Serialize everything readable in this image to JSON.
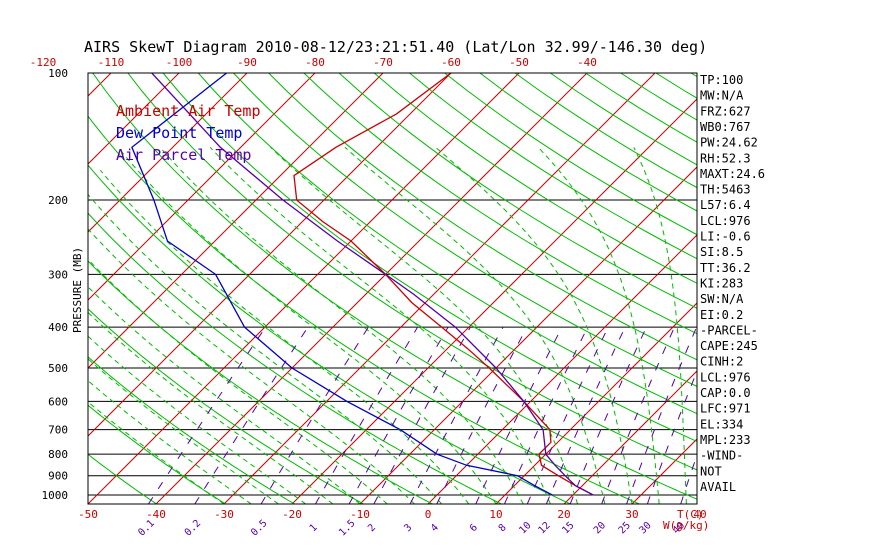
{
  "chart_data": {
    "type": "line",
    "title": "AIRS SkewT Diagram 2010-08-12/23:21:51.40 (Lat/Lon 32.99/-146.30 deg)",
    "ylabel": "PRESSURE (MB)",
    "xlabel": "T(C)",
    "mixing_ratio_label": "W(g/kg)",
    "pressure_ticks": [
      "100",
      "200",
      "300",
      "400",
      "500",
      "600",
      "700",
      "800",
      "900",
      "1000"
    ],
    "pressure_values": [
      100,
      200,
      300,
      400,
      500,
      600,
      700,
      800,
      900,
      1000
    ],
    "top_temp_ticks": [
      "-120",
      "-110",
      "-100",
      "-90",
      "-80",
      "-70",
      "-60",
      "-50",
      "-40"
    ],
    "bottom_temp_ticks": [
      "-50",
      "-40",
      "-30",
      "-20",
      "-10",
      "0",
      "10",
      "20",
      "30",
      "40"
    ],
    "mixing_ratio_ticks": [
      "0.1",
      "0.2",
      "0.5",
      "1",
      "1.5",
      "2",
      "3",
      "4",
      "6",
      "8",
      "10",
      "12",
      "15",
      "20",
      "25",
      "30",
      "40"
    ],
    "legend": [
      {
        "name": "Ambient Air Temp",
        "color": "#cc0000"
      },
      {
        "name": "Dew Point Temp",
        "color": "#0000cc"
      },
      {
        "name": "Air Parcel Temp",
        "color": "#5500aa"
      }
    ],
    "series": [
      {
        "name": "Ambient Air Temp",
        "color": "#cc0000",
        "points": [
          {
            "p": 100,
            "t": -60
          },
          {
            "p": 125,
            "t": -62
          },
          {
            "p": 150,
            "t": -66
          },
          {
            "p": 175,
            "t": -68
          },
          {
            "p": 200,
            "t": -64
          },
          {
            "p": 225,
            "t": -57
          },
          {
            "p": 250,
            "t": -50
          },
          {
            "p": 300,
            "t": -40
          },
          {
            "p": 350,
            "t": -32
          },
          {
            "p": 400,
            "t": -24
          },
          {
            "p": 450,
            "t": -17
          },
          {
            "p": 500,
            "t": -11
          },
          {
            "p": 600,
            "t": -1
          },
          {
            "p": 700,
            "t": 7
          },
          {
            "p": 750,
            "t": 9
          },
          {
            "p": 800,
            "t": 9
          },
          {
            "p": 850,
            "t": 11
          },
          {
            "p": 900,
            "t": 15
          },
          {
            "p": 950,
            "t": 19
          },
          {
            "p": 1000,
            "t": 23
          }
        ]
      },
      {
        "name": "Dew Point Temp",
        "color": "#0000cc",
        "points": [
          {
            "p": 100,
            "t": -93
          },
          {
            "p": 150,
            "t": -96
          },
          {
            "p": 200,
            "t": -85
          },
          {
            "p": 250,
            "t": -77
          },
          {
            "p": 300,
            "t": -65
          },
          {
            "p": 400,
            "t": -53
          },
          {
            "p": 500,
            "t": -40
          },
          {
            "p": 600,
            "t": -27
          },
          {
            "p": 700,
            "t": -15
          },
          {
            "p": 800,
            "t": -6
          },
          {
            "p": 850,
            "t": 0
          },
          {
            "p": 900,
            "t": 9
          },
          {
            "p": 950,
            "t": 13
          },
          {
            "p": 1000,
            "t": 17
          }
        ]
      },
      {
        "name": "Air Parcel Temp",
        "color": "#5500aa",
        "points": [
          {
            "p": 1000,
            "t": 23
          },
          {
            "p": 950,
            "t": 19
          },
          {
            "p": 900,
            "t": 16
          },
          {
            "p": 850,
            "t": 13
          },
          {
            "p": 800,
            "t": 10
          },
          {
            "p": 700,
            "t": 6
          },
          {
            "p": 600,
            "t": -1
          },
          {
            "p": 500,
            "t": -10
          },
          {
            "p": 400,
            "t": -22
          },
          {
            "p": 334,
            "t": -33
          },
          {
            "p": 300,
            "t": -40
          },
          {
            "p": 250,
            "t": -52
          },
          {
            "p": 200,
            "t": -66
          },
          {
            "p": 150,
            "t": -83
          },
          {
            "p": 100,
            "t": -104
          }
        ]
      }
    ],
    "indices": [
      "TP:100",
      "MW:N/A",
      "FRZ:627",
      "WB0:767",
      "PW:24.62",
      "RH:52.3",
      "MAXT:24.6",
      "TH:5463",
      "L57:6.4",
      "LCL:976",
      "LI:-0.6",
      "SI:8.5",
      "TT:36.2",
      "KI:283",
      "SW:N/A",
      "EI:0.2",
      "-PARCEL-",
      "CAPE:245",
      "CINH:2",
      "LCL:976",
      "CAP:0.0",
      "LFC:971",
      "EL:334",
      "MPL:233",
      "-WIND-",
      "NOT",
      "AVAIL"
    ],
    "grid": true,
    "legend_position": "top-left",
    "colors": {
      "isotherm": "#cc0000",
      "dry_adiabat": "#00bb00",
      "moist_adiabat": "#00bb00",
      "mixing_ratio": "#5500aa",
      "isobar": "#000000"
    }
  }
}
